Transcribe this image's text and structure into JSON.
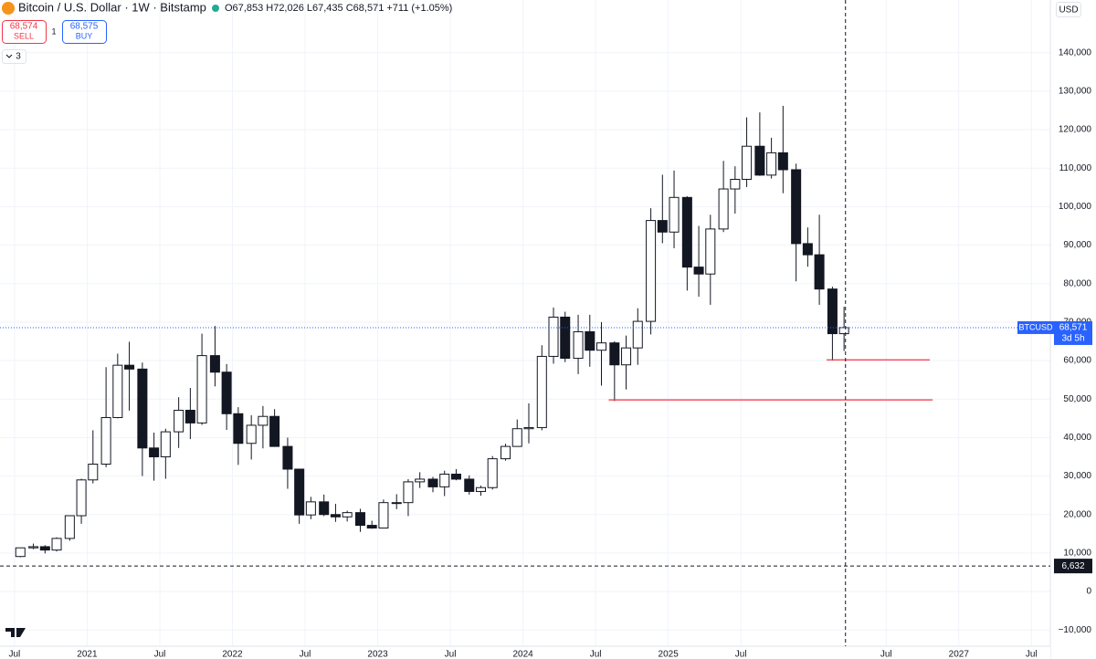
{
  "header": {
    "symbol": "Bitcoin / U.S. Dollar · 1W · Bitstamp",
    "ohlc": "O67,853 H72,026 L67,435 C68,571 +711 (+1.05%)",
    "sell_price": "68,574",
    "sell_label": "SELL",
    "spread": "1",
    "buy_price": "68,575",
    "buy_label": "BUY",
    "indicators_count": "3",
    "currency": "USD"
  },
  "chart_data": {
    "type": "candlestick",
    "x": [
      2020.54,
      2020.63,
      2020.71,
      2020.79,
      2020.88,
      2020.96,
      2021.04,
      2021.13,
      2021.21,
      2021.29,
      2021.38,
      2021.46,
      2021.54,
      2021.63,
      2021.71,
      2021.79,
      2021.88,
      2021.96,
      2022.04,
      2022.13,
      2022.21,
      2022.29,
      2022.38,
      2022.46,
      2022.54,
      2022.63,
      2022.71,
      2022.79,
      2022.88,
      2022.96,
      2023.04,
      2023.13,
      2023.21,
      2023.29,
      2023.38,
      2023.46,
      2023.54,
      2023.63,
      2023.71,
      2023.79,
      2023.88,
      2023.96,
      2024.04,
      2024.13,
      2024.21,
      2024.29,
      2024.38,
      2024.46,
      2024.54,
      2024.63,
      2024.71,
      2024.79,
      2024.88,
      2024.96,
      2025.04,
      2025.13,
      2025.21,
      2025.29,
      2025.38,
      2025.46,
      2025.54,
      2025.63,
      2025.71,
      2025.79,
      2025.88,
      2025.96,
      2026.04,
      2026.13,
      2026.21
    ],
    "open": [
      9100,
      11350,
      11650,
      10780,
      13800,
      19700,
      29000,
      33100,
      45200,
      58800,
      57800,
      37300,
      35000,
      41500,
      47100,
      43800,
      61300,
      57000,
      46200,
      38500,
      43200,
      45500,
      37700,
      31800,
      19900,
      23300,
      20000,
      19400,
      20500,
      17200,
      16500,
      23100,
      23100,
      28500,
      29200,
      27200,
      30500,
      29200,
      26000,
      27000,
      34500,
      37700,
      42300,
      42600,
      61100,
      71300,
      60600,
      67500,
      62700,
      64600,
      58900,
      63300,
      70200,
      96400,
      93400,
      102400,
      84300,
      82500,
      94200,
      104600,
      107100,
      115700,
      108200,
      114000,
      109600,
      90400,
      87500,
      78600,
      67000
    ],
    "high": [
      11400,
      12450,
      12050,
      14100,
      19800,
      29300,
      41900,
      58300,
      61800,
      64900,
      59500,
      41300,
      42300,
      50500,
      52900,
      67000,
      69000,
      59100,
      47900,
      45800,
      48200,
      47400,
      40000,
      31900,
      24600,
      25200,
      22800,
      21000,
      21500,
      18400,
      23900,
      25300,
      29200,
      31000,
      29800,
      31400,
      31800,
      30200,
      27500,
      35200,
      38400,
      44700,
      48900,
      64000,
      73800,
      72700,
      71900,
      71900,
      70000,
      65000,
      66500,
      73600,
      99600,
      108300,
      109400,
      102700,
      95000,
      97900,
      111900,
      110500,
      123200,
      124500,
      117900,
      126200,
      111200,
      94600,
      97900,
      79200,
      74000
    ],
    "low": [
      8900,
      11000,
      9900,
      10400,
      13200,
      17600,
      28100,
      32300,
      45000,
      47000,
      30000,
      28800,
      29300,
      37300,
      39600,
      43300,
      53300,
      42000,
      32900,
      34300,
      37200,
      37600,
      26700,
      17600,
      18800,
      19600,
      18100,
      18200,
      15500,
      16300,
      16500,
      21400,
      19600,
      26900,
      25800,
      24800,
      28900,
      25200,
      24900,
      26500,
      34000,
      37600,
      38500,
      41900,
      59200,
      59600,
      56500,
      58400,
      53500,
      49500,
      52500,
      58900,
      66800,
      90500,
      89200,
      78200,
      76600,
      74500,
      93400,
      98200,
      105100,
      108000,
      107300,
      103500,
      80600,
      84400,
      74500,
      60000,
      62500
    ],
    "close": [
      11350,
      11650,
      10780,
      13800,
      19700,
      29000,
      33100,
      45200,
      58800,
      57800,
      37300,
      35000,
      41500,
      47100,
      43800,
      61300,
      57000,
      46200,
      38500,
      43200,
      45500,
      37700,
      31800,
      19900,
      23300,
      20000,
      19400,
      20500,
      17200,
      16500,
      23100,
      23100,
      28500,
      29200,
      27200,
      30500,
      29200,
      26000,
      27000,
      34500,
      37700,
      42300,
      42600,
      61100,
      71300,
      60600,
      67500,
      62700,
      64600,
      58900,
      63300,
      70200,
      96400,
      93400,
      102400,
      84300,
      82500,
      94200,
      104600,
      107100,
      115700,
      108200,
      114000,
      109600,
      90400,
      87500,
      78600,
      67000,
      68571
    ],
    "up_color": "#131722",
    "down_color": "#131722",
    "xlim": [
      2020.4,
      2027.63
    ],
    "xticks": [
      {
        "value": 2020.5,
        "label": "Jul"
      },
      {
        "value": 2021,
        "label": "2021"
      },
      {
        "value": 2021.5,
        "label": "Jul"
      },
      {
        "value": 2022,
        "label": "2022"
      },
      {
        "value": 2022.5,
        "label": "Jul"
      },
      {
        "value": 2023,
        "label": "2023"
      },
      {
        "value": 2023.5,
        "label": "Jul"
      },
      {
        "value": 2024,
        "label": "2024"
      },
      {
        "value": 2024.5,
        "label": "Jul"
      },
      {
        "value": 2025,
        "label": "2025"
      },
      {
        "value": 2025.5,
        "label": "Jul"
      },
      {
        "value": 2026.5,
        "label": "Jul"
      },
      {
        "value": 2027,
        "label": "2027"
      },
      {
        "value": 2027.5,
        "label": "Jul"
      }
    ],
    "ylim": [
      -13500,
      153700
    ],
    "yticks": [
      {
        "value": 140000,
        "label": "140,000"
      },
      {
        "value": 130000,
        "label": "130,000"
      },
      {
        "value": 120000,
        "label": "120,000"
      },
      {
        "value": 110000,
        "label": "110,000"
      },
      {
        "value": 100000,
        "label": "100,000"
      },
      {
        "value": 90000,
        "label": "90,000"
      },
      {
        "value": 80000,
        "label": "80,000"
      },
      {
        "value": 70000,
        "label": "70,000"
      },
      {
        "value": 60000,
        "label": "60,000"
      },
      {
        "value": 50000,
        "label": "50,000"
      },
      {
        "value": 40000,
        "label": "40,000"
      },
      {
        "value": 30000,
        "label": "30,000"
      },
      {
        "value": 20000,
        "label": "20,000"
      },
      {
        "value": 10000,
        "label": "10,000"
      },
      0,
      {
        "value": -10000,
        "label": "−10,000"
      }
    ],
    "grid": true,
    "last_price": {
      "name": "BTCUSD",
      "value": 68571,
      "label": "68,571",
      "countdown": "3d 5h",
      "color": "#2962ff"
    },
    "levels": [
      {
        "value": 60200,
        "x": [
          2026.09,
          2026.8
        ],
        "color": "#f23645"
      },
      {
        "value": 49800,
        "x": [
          2024.59,
          2026.82
        ],
        "color": "#f23645"
      }
    ],
    "crosshair": {
      "x": 2026.22,
      "value": 6632,
      "label": "6,632"
    }
  }
}
